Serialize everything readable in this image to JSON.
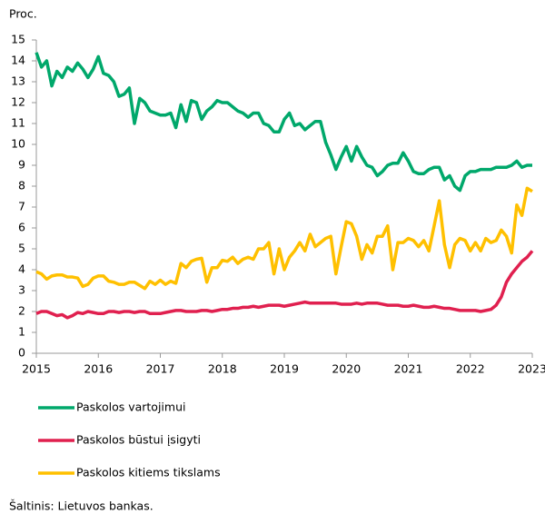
{
  "chart_data": {
    "type": "line",
    "y_unit_label": "Proc.",
    "source": "Šaltinis: Lietuvos bankas.",
    "x": [
      2015,
      2015.083,
      2015.167,
      2015.25,
      2015.333,
      2015.417,
      2015.5,
      2015.583,
      2015.667,
      2015.75,
      2015.833,
      2015.917,
      2016,
      2016.083,
      2016.167,
      2016.25,
      2016.333,
      2016.417,
      2016.5,
      2016.583,
      2016.667,
      2016.75,
      2016.833,
      2016.917,
      2017,
      2017.083,
      2017.167,
      2017.25,
      2017.333,
      2017.417,
      2017.5,
      2017.583,
      2017.667,
      2017.75,
      2017.833,
      2017.917,
      2018,
      2018.083,
      2018.167,
      2018.25,
      2018.333,
      2018.417,
      2018.5,
      2018.583,
      2018.667,
      2018.75,
      2018.833,
      2018.917,
      2019,
      2019.083,
      2019.167,
      2019.25,
      2019.333,
      2019.417,
      2019.5,
      2019.583,
      2019.667,
      2019.75,
      2019.833,
      2019.917,
      2020,
      2020.083,
      2020.167,
      2020.25,
      2020.333,
      2020.417,
      2020.5,
      2020.583,
      2020.667,
      2020.75,
      2020.833,
      2020.917,
      2021,
      2021.083,
      2021.167,
      2021.25,
      2021.333,
      2021.417,
      2021.5,
      2021.583,
      2021.667,
      2021.75,
      2021.833,
      2021.917,
      2022,
      2022.083,
      2022.167,
      2022.25,
      2022.333,
      2022.417,
      2022.5,
      2022.583,
      2022.667,
      2022.75,
      2022.833,
      2022.917,
      2023
    ],
    "series": [
      {
        "name": "Paskolos vartojimui",
        "color": "#00a86b",
        "values": [
          14.4,
          13.7,
          14.0,
          12.8,
          13.5,
          13.2,
          13.7,
          13.5,
          13.9,
          13.6,
          13.2,
          13.6,
          14.2,
          13.4,
          13.3,
          13.0,
          12.3,
          12.4,
          12.7,
          11.0,
          12.2,
          12.0,
          11.6,
          11.5,
          11.4,
          11.4,
          11.5,
          10.8,
          11.9,
          11.1,
          12.1,
          12.0,
          11.2,
          11.6,
          11.8,
          12.1,
          12.0,
          12.0,
          11.8,
          11.6,
          11.5,
          11.3,
          11.5,
          11.5,
          11.0,
          10.9,
          10.6,
          10.6,
          11.2,
          11.5,
          10.9,
          11.0,
          10.7,
          10.9,
          11.1,
          11.1,
          10.1,
          9.5,
          8.8,
          9.4,
          9.9,
          9.2,
          9.9,
          9.4,
          9.0,
          8.9,
          8.5,
          8.7,
          9.0,
          9.1,
          9.1,
          9.6,
          9.2,
          8.7,
          8.6,
          8.6,
          8.8,
          8.9,
          8.9,
          8.3,
          8.5,
          8.0,
          7.8,
          8.5,
          8.7,
          8.7,
          8.8,
          8.8,
          8.8,
          8.9,
          8.9,
          8.9,
          9.0,
          9.2,
          8.9,
          9.0,
          9.0
        ]
      },
      {
        "name": "Paskolos būstui įsigyti",
        "color": "#e0204f",
        "values": [
          1.9,
          2.0,
          2.0,
          1.9,
          1.8,
          1.85,
          1.7,
          1.8,
          1.95,
          1.9,
          2.0,
          1.95,
          1.9,
          1.9,
          2.0,
          2.0,
          1.95,
          2.0,
          2.0,
          1.95,
          2.0,
          2.0,
          1.9,
          1.9,
          1.9,
          1.95,
          2.0,
          2.05,
          2.05,
          2.0,
          2.0,
          2.0,
          2.05,
          2.05,
          2.0,
          2.05,
          2.1,
          2.1,
          2.15,
          2.15,
          2.2,
          2.2,
          2.25,
          2.2,
          2.25,
          2.3,
          2.3,
          2.3,
          2.25,
          2.3,
          2.35,
          2.4,
          2.45,
          2.4,
          2.4,
          2.4,
          2.4,
          2.4,
          2.4,
          2.35,
          2.35,
          2.35,
          2.4,
          2.35,
          2.4,
          2.4,
          2.4,
          2.35,
          2.3,
          2.3,
          2.3,
          2.25,
          2.25,
          2.3,
          2.25,
          2.2,
          2.2,
          2.25,
          2.2,
          2.15,
          2.15,
          2.1,
          2.05,
          2.05,
          2.05,
          2.05,
          2.0,
          2.05,
          2.1,
          2.3,
          2.7,
          3.4,
          3.8,
          4.1,
          4.4,
          4.6,
          4.9
        ]
      },
      {
        "name": "Paskolos kitiems tikslams",
        "color": "#ffc000",
        "values": [
          3.9,
          3.8,
          3.55,
          3.7,
          3.75,
          3.75,
          3.65,
          3.65,
          3.6,
          3.2,
          3.3,
          3.6,
          3.7,
          3.7,
          3.45,
          3.4,
          3.3,
          3.3,
          3.4,
          3.4,
          3.25,
          3.1,
          3.45,
          3.3,
          3.5,
          3.3,
          3.45,
          3.35,
          4.3,
          4.1,
          4.4,
          4.5,
          4.55,
          3.4,
          4.1,
          4.1,
          4.45,
          4.4,
          4.6,
          4.3,
          4.5,
          4.6,
          4.5,
          5.0,
          5.0,
          5.3,
          3.8,
          5.0,
          4.0,
          4.6,
          4.9,
          5.3,
          4.9,
          5.7,
          5.1,
          5.3,
          5.5,
          5.6,
          3.8,
          5.1,
          6.3,
          6.2,
          5.6,
          4.5,
          5.2,
          4.8,
          5.6,
          5.6,
          6.1,
          4.0,
          5.3,
          5.3,
          5.5,
          5.4,
          5.1,
          5.4,
          4.9,
          6.1,
          7.3,
          5.2,
          4.1,
          5.2,
          5.5,
          5.4,
          4.9,
          5.3,
          4.9,
          5.5,
          5.3,
          5.4,
          5.9,
          5.6,
          4.8,
          7.1,
          6.6,
          7.9,
          7.75
        ]
      }
    ],
    "xlim": [
      2015,
      2023
    ],
    "xticks": [
      2015,
      2016,
      2017,
      2018,
      2019,
      2020,
      2021,
      2022,
      2023
    ],
    "ylim": [
      0,
      15
    ],
    "yticks": [
      0,
      1,
      2,
      3,
      4,
      5,
      6,
      7,
      8,
      9,
      10,
      11,
      12,
      13,
      14,
      15
    ],
    "grid": false,
    "legend": "bottom"
  }
}
